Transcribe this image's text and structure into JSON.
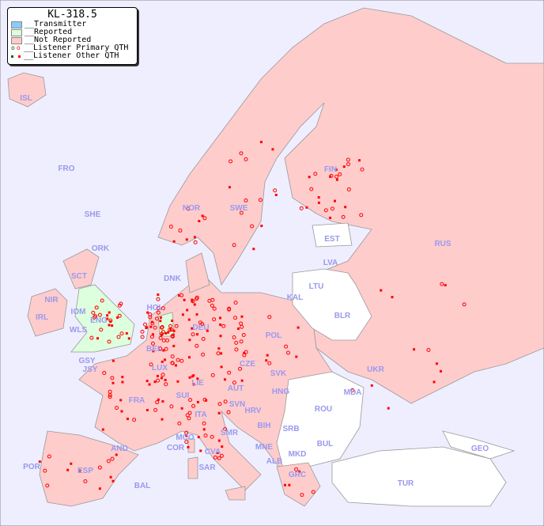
{
  "legend": {
    "title": "KL-318.5",
    "items": [
      {
        "label": "__Transmitter",
        "color": "#88ccff"
      },
      {
        "label": "__Reported",
        "color": "#ddffdd"
      },
      {
        "label": "__Not Reported",
        "color": "#ffcccc"
      },
      {
        "label": "__Listener Primary QTH",
        "marker": "circle",
        "colors": [
          "#006600",
          "#ff0000"
        ]
      },
      {
        "label": "__Listener Other QTH",
        "marker": "square",
        "colors": [
          "#006600",
          "#ff0000"
        ]
      }
    ]
  },
  "colors": {
    "sea": "#eeeeff",
    "not_reported": "#ffcccc",
    "reported": "#ddffdd",
    "no_data": "#ffffff",
    "listener": "#ff0000",
    "label": "#9999ee"
  },
  "countries": [
    "ISL",
    "FRO",
    "SHE",
    "ORK",
    "NOR",
    "SWE",
    "FIN",
    "EST",
    "LVA",
    "LTU",
    "RUS",
    "DNK",
    "KAL",
    "HOL",
    "DEU",
    "POL",
    "BLR",
    "IRL",
    "NIR",
    "SCT",
    "IOM",
    "WLS",
    "ENG",
    "GSY",
    "JSY",
    "BEL",
    "LUX",
    "CZE",
    "SVK",
    "UKR",
    "FRA",
    "SUI",
    "LIE",
    "AUT",
    "HNG",
    "MDA",
    "SVN",
    "HRV",
    "ROU",
    "ITA",
    "BIH",
    "SRB",
    "MCO",
    "COR",
    "SMR",
    "BUL",
    "MNE",
    "AND",
    "ALB",
    "MKD",
    "GEO",
    "POR",
    "ESP",
    "CVA",
    "SAR",
    "BAL",
    "GRC",
    "TUR"
  ]
}
